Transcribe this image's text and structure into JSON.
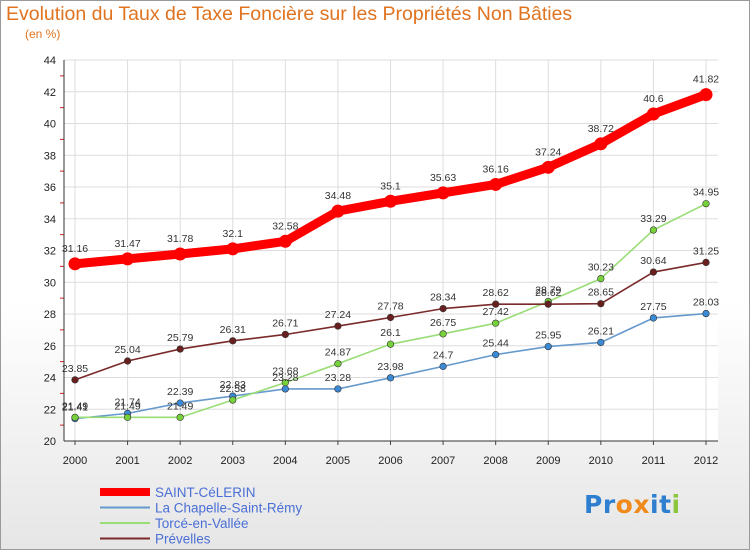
{
  "chart_data": {
    "type": "line",
    "title": "Evolution du Taux de Taxe Foncière sur les Propriétés Non Bâties",
    "ylabel": "(en %)",
    "xlabel": "",
    "ylim": [
      20,
      44
    ],
    "yticks": [
      "20",
      "22",
      "24",
      "26",
      "28",
      "30",
      "32",
      "34",
      "36",
      "38",
      "40",
      "42",
      "44"
    ],
    "categories": [
      "2000",
      "2001",
      "2002",
      "2003",
      "2004",
      "2005",
      "2006",
      "2007",
      "2008",
      "2009",
      "2010",
      "2011",
      "2012"
    ],
    "legend_position": "bottom-left",
    "series": [
      {
        "name": "SAINT-CéLERIN",
        "color": "#ff0000",
        "marker_color": "#ff0000",
        "emphasis": "thick",
        "values": [
          31.16,
          31.47,
          31.78,
          32.1,
          32.58,
          34.48,
          35.1,
          35.63,
          36.16,
          37.24,
          38.72,
          40.6,
          41.82
        ],
        "labels": [
          "31.16",
          "31.47",
          "31.78",
          "32.1",
          "32.58",
          "34.48",
          "35.1",
          "35.63",
          "36.16",
          "37.24",
          "38.72",
          "40.6",
          "41.82"
        ]
      },
      {
        "name": "La Chapelle-Saint-Rémy",
        "color": "#6699cc",
        "marker_color": "#3b8ad6",
        "emphasis": "thin",
        "values": [
          21.41,
          21.74,
          22.39,
          22.83,
          23.28,
          23.28,
          23.98,
          24.7,
          25.44,
          25.95,
          26.21,
          27.75,
          28.03
        ],
        "labels": [
          "21.41",
          "21.74",
          "22.39",
          "22.83",
          "23.28",
          "23.28",
          "23.98",
          "24.7",
          "25.44",
          "25.95",
          "26.21",
          "27.75",
          "28.03"
        ]
      },
      {
        "name": "Torcé-en-Vallée",
        "color": "#99dd77",
        "marker_color": "#77d13a",
        "emphasis": "thin",
        "values": [
          21.49,
          21.49,
          21.49,
          22.58,
          23.68,
          24.87,
          26.1,
          26.75,
          27.42,
          28.79,
          30.23,
          33.29,
          34.95
        ],
        "labels": [
          "21.49",
          "21.49",
          "21.49",
          "22.58",
          "23.68",
          "24.87",
          "26.1",
          "26.75",
          "27.42",
          "28.79",
          "30.23",
          "33.29",
          "34.95"
        ]
      },
      {
        "name": "Prévelles",
        "color": "#7a2a2a",
        "marker_color": "#6a1f1f",
        "emphasis": "thin",
        "values": [
          23.85,
          25.04,
          25.79,
          26.31,
          26.71,
          27.24,
          27.78,
          28.34,
          28.62,
          28.62,
          28.65,
          30.64,
          31.25
        ],
        "labels": [
          "23.85",
          "25.04",
          "25.79",
          "26.31",
          "26.71",
          "27.24",
          "27.78",
          "28.34",
          "28.62",
          "28.62",
          "28.65",
          "30.64",
          "31.25"
        ]
      }
    ]
  },
  "brand": {
    "letters": [
      "P",
      "r",
      "o",
      "x",
      "i",
      "t",
      "i"
    ],
    "colors": [
      "#2e7fd0",
      "#2e7fd0",
      "#f08a1c",
      "#f08a1c",
      "#2e7fd0",
      "#2e7fd0",
      "#8cc63f"
    ]
  }
}
